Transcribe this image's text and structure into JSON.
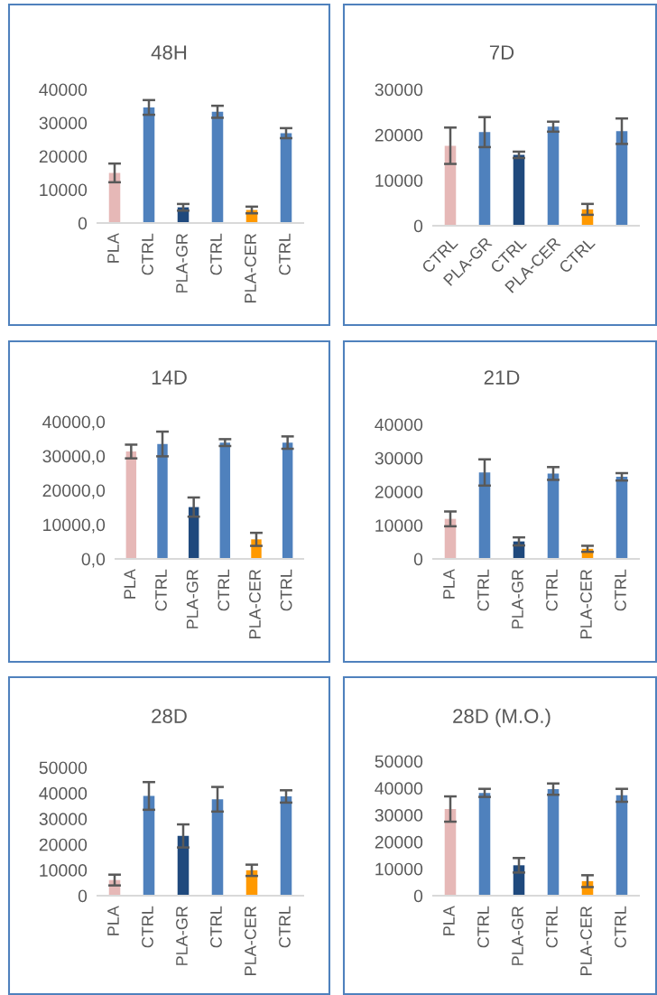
{
  "chart_data": [
    {
      "type": "bar",
      "title": "48H",
      "categories": [
        "PLA",
        "CTRL",
        "PLA-GR",
        "CTRL",
        "PLA-CER",
        "CTRL"
      ],
      "values": [
        15000,
        34600,
        4700,
        33300,
        3900,
        26900
      ],
      "errors": [
        2800,
        2200,
        1000,
        1800,
        1000,
        1500
      ],
      "colors": [
        "#e6b8b7",
        "#4f81bd",
        "#1f497d",
        "#4f81bd",
        "#ff9900",
        "#4f81bd"
      ],
      "ylim": [
        0,
        40000
      ],
      "yticks": [
        0,
        10000,
        20000,
        30000,
        40000
      ],
      "grid": false
    },
    {
      "type": "bar",
      "title": "7D",
      "categories": [
        "CTRL",
        "PLA-GR",
        "CTRL",
        "PLA-CER",
        "CTRL",
        null
      ],
      "values": [
        17600,
        20600,
        15600,
        21800,
        3600,
        20800
      ],
      "errors": [
        4000,
        3300,
        700,
        1100,
        1200,
        2800
      ],
      "colors": [
        "#e6b8b7",
        "#4f81bd",
        "#1f497d",
        "#4f81bd",
        "#ff9900",
        "#4f81bd"
      ],
      "ylim": [
        0,
        30000
      ],
      "yticks": [
        0,
        10000,
        20000,
        30000
      ],
      "grid": false
    },
    {
      "type": "bar",
      "title": "14D",
      "categories": [
        "PLA",
        "CTRL",
        "PLA-GR",
        "CTRL",
        "PLA-CER",
        "CTRL"
      ],
      "values": [
        31300,
        33500,
        15100,
        33900,
        5700,
        33900
      ],
      "errors": [
        2000,
        3600,
        2800,
        1000,
        1900,
        1800
      ],
      "colors": [
        "#e6b8b7",
        "#4f81bd",
        "#1f497d",
        "#4f81bd",
        "#ff9900",
        "#4f81bd"
      ],
      "ylim": [
        0,
        40000
      ],
      "yticks": [
        {
          "value": 0,
          "label": "0,0"
        },
        {
          "value": 10000,
          "label": "10000,0"
        },
        {
          "value": 20000,
          "label": "20000,0"
        },
        {
          "value": 30000,
          "label": "30000,0"
        },
        {
          "value": 40000,
          "label": "40000,0"
        }
      ],
      "grid": false
    },
    {
      "type": "bar",
      "title": "21D",
      "categories": [
        "PLA",
        "CTRL",
        "PLA-GR",
        "CTRL",
        "PLA-CER",
        "CTRL"
      ],
      "values": [
        11900,
        25700,
        5200,
        25400,
        3000,
        24400
      ],
      "errors": [
        2200,
        3900,
        1200,
        1900,
        900,
        1100
      ],
      "colors": [
        "#e6b8b7",
        "#4f81bd",
        "#1f497d",
        "#4f81bd",
        "#ff9900",
        "#4f81bd"
      ],
      "ylim": [
        0,
        40000
      ],
      "yticks": [
        0,
        10000,
        20000,
        30000,
        40000
      ],
      "grid": false
    },
    {
      "type": "bar",
      "title": "28D",
      "categories": [
        "PLA",
        "CTRL",
        "PLA-GR",
        "CTRL",
        "PLA-CER",
        "CTRL"
      ],
      "values": [
        6100,
        38900,
        23300,
        37600,
        9900,
        38700
      ],
      "errors": [
        2100,
        5400,
        4500,
        4800,
        2200,
        2400
      ],
      "colors": [
        "#e6b8b7",
        "#4f81bd",
        "#1f497d",
        "#4f81bd",
        "#ff9900",
        "#4f81bd"
      ],
      "ylim": [
        0,
        50000
      ],
      "yticks": [
        0,
        10000,
        20000,
        30000,
        40000,
        50000
      ],
      "grid": false
    },
    {
      "type": "bar",
      "title": "28D (M.O.)",
      "categories": [
        "PLA",
        "CTRL",
        "PLA-GR",
        "CTRL",
        "PLA-CER",
        "CTRL"
      ],
      "values": [
        32200,
        38200,
        11300,
        39600,
        5400,
        37300
      ],
      "errors": [
        4700,
        1500,
        2700,
        2100,
        2200,
        2400
      ],
      "colors": [
        "#e6b8b7",
        "#4f81bd",
        "#1f497d",
        "#4f81bd",
        "#ff9900",
        "#4f81bd"
      ],
      "ylim": [
        0,
        50000
      ],
      "yticks": [
        0,
        10000,
        20000,
        30000,
        40000,
        50000
      ],
      "grid": false
    }
  ]
}
